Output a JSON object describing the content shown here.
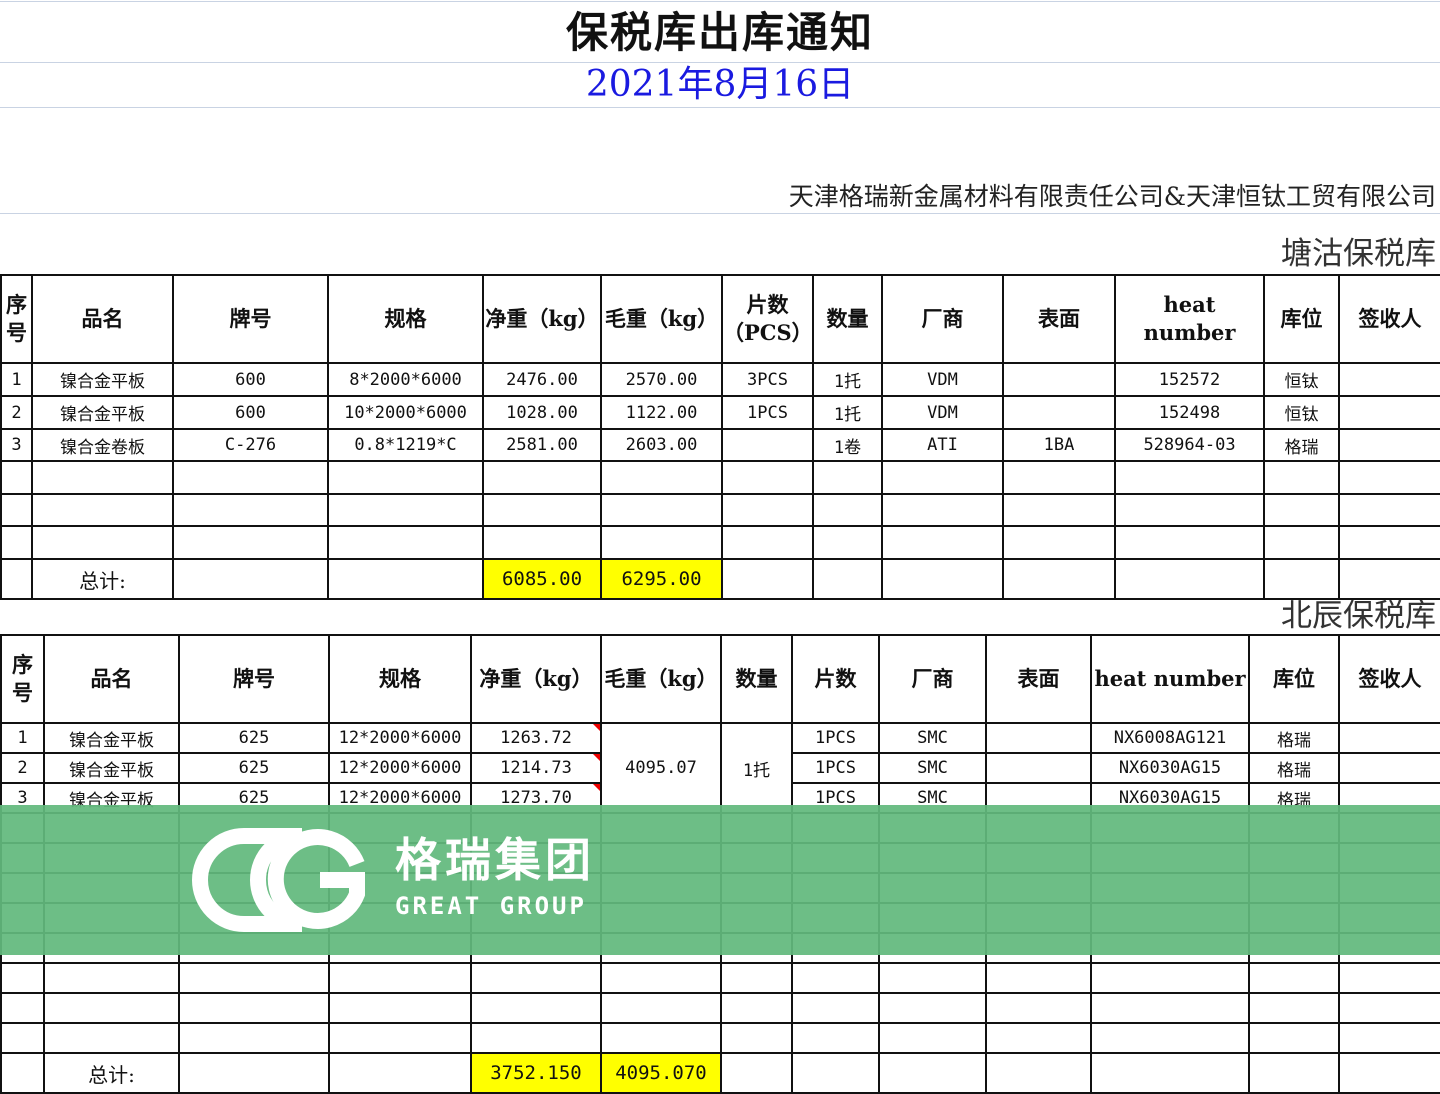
{
  "title": "保税库出库通知",
  "date": "2021年8月16日",
  "company": "天津格瑞新金属材料有限责任公司&天津恒钛工贸有限公司",
  "tables": [
    {
      "warehouse": "塘沽保税库",
      "headers": [
        "序号",
        "品名",
        "牌号",
        "规格",
        "净重（kg）",
        "毛重（kg）",
        "片数（PCS）",
        "数量",
        "厂商",
        "表面",
        "heat number",
        "库位",
        "签收人"
      ],
      "rows": [
        [
          "1",
          "镍合金平板",
          "600",
          "8*2000*6000",
          "2476.00",
          "2570.00",
          "3PCS",
          "1托",
          "VDM",
          "",
          "152572",
          "恒钛",
          ""
        ],
        [
          "2",
          "镍合金平板",
          "600",
          "10*2000*6000",
          "1028.00",
          "1122.00",
          "1PCS",
          "1托",
          "VDM",
          "",
          "152498",
          "恒钛",
          ""
        ],
        [
          "3",
          "镍合金卷板",
          "C-276",
          "0.8*1219*C",
          "2581.00",
          "2603.00",
          "",
          "1卷",
          "ATI",
          "1BA",
          "528964-03",
          "格瑞",
          ""
        ],
        [
          "",
          "",
          "",
          "",
          "",
          "",
          "",
          "",
          "",
          "",
          "",
          "",
          ""
        ],
        [
          "",
          "",
          "",
          "",
          "",
          "",
          "",
          "",
          "",
          "",
          "",
          "",
          ""
        ],
        [
          "",
          "",
          "",
          "",
          "",
          "",
          "",
          "",
          "",
          "",
          "",
          "",
          ""
        ]
      ],
      "total_label": "总计:",
      "total_net": "6085.00",
      "total_gross": "6295.00"
    },
    {
      "warehouse": "北辰保税库",
      "headers": [
        "序号",
        "品名",
        "牌号",
        "规格",
        "净重（kg）",
        "毛重（kg）",
        "数量",
        "片数",
        "厂商",
        "表面",
        "heat number",
        "库位",
        "签收人"
      ],
      "rows": [
        [
          "1",
          "镍合金平板",
          "625",
          "12*2000*6000",
          "1263.72",
          "4095.07",
          "1托",
          "1PCS",
          "SMC",
          "",
          "NX6008AG121",
          "格瑞",
          ""
        ],
        [
          "2",
          "镍合金平板",
          "625",
          "12*2000*6000",
          "1214.73",
          "",
          "",
          "1PCS",
          "SMC",
          "",
          "NX6030AG15",
          "格瑞",
          ""
        ],
        [
          "3",
          "镍合金平板",
          "625",
          "12*2000*6000",
          "1273.70",
          "",
          "",
          "1PCS",
          "SMC",
          "",
          "NX6030AG15",
          "格瑞",
          ""
        ]
      ],
      "total_label": "总计:",
      "total_net": "3752.150",
      "total_gross": "4095.070"
    }
  ],
  "watermark": {
    "cn": "格瑞集团",
    "en": "GREAT GROUP",
    "color": "#6dbf88"
  }
}
